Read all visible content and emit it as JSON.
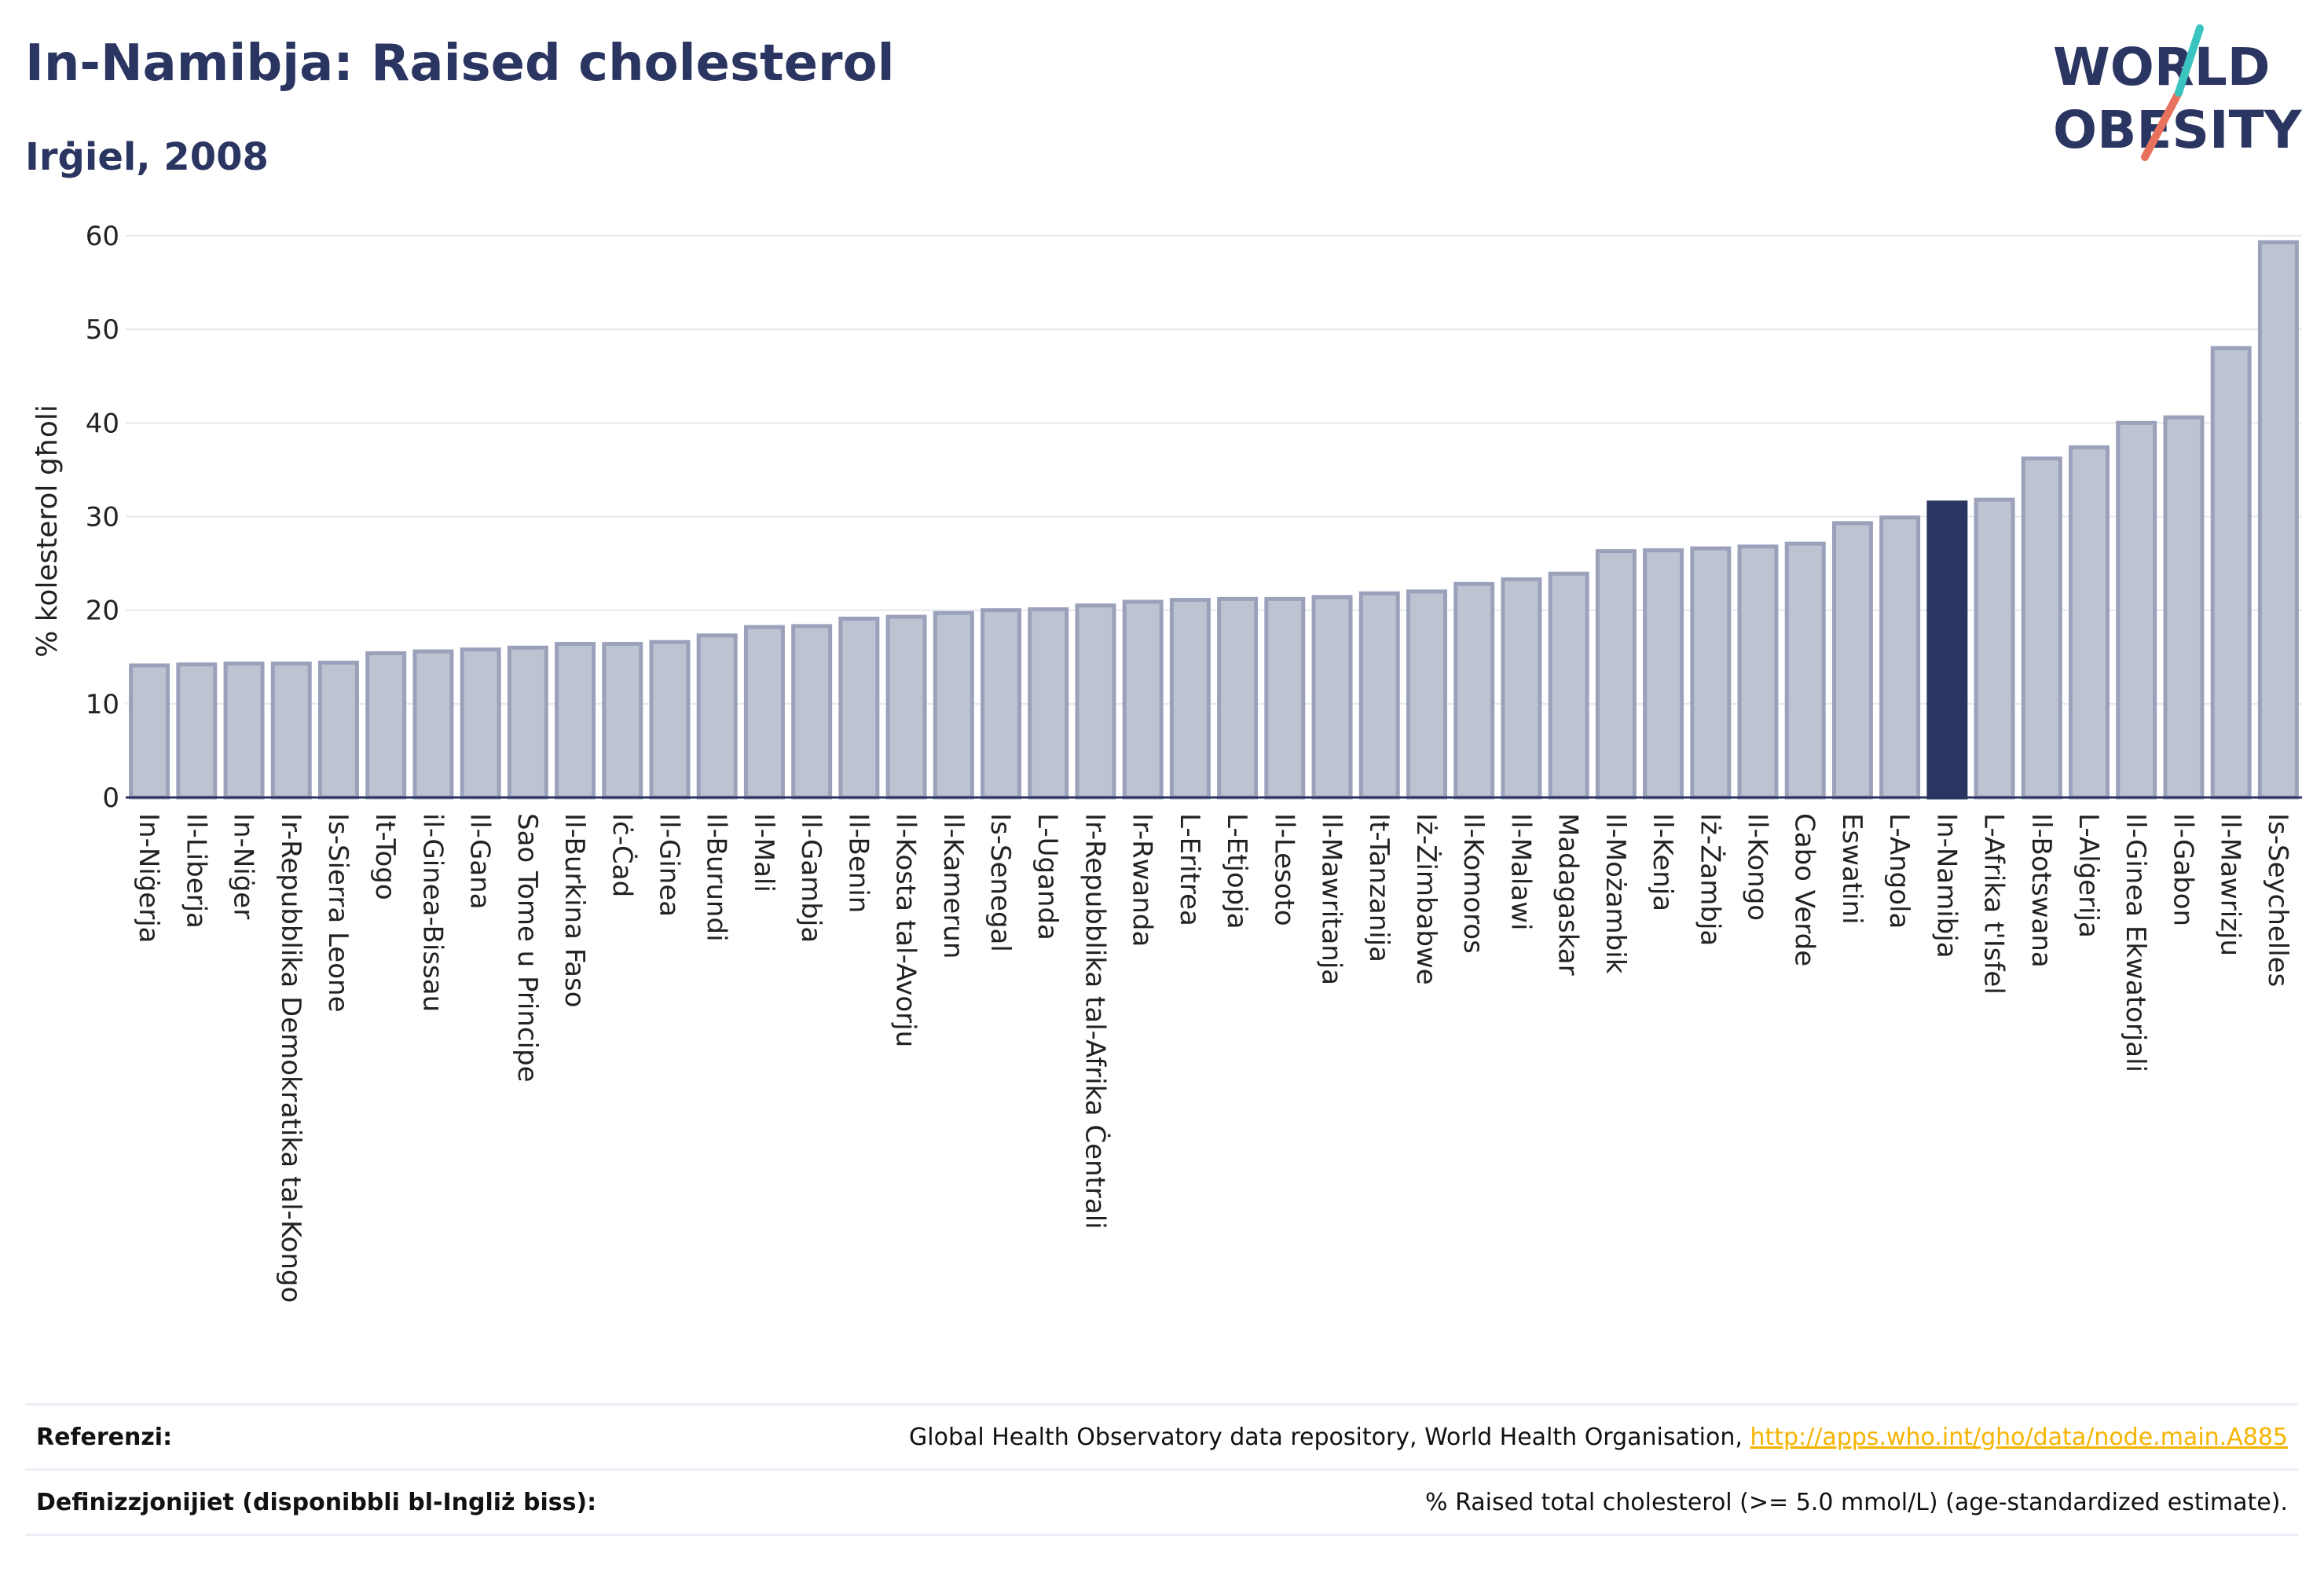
{
  "header": {
    "title": "In-Namibja: Raised cholesterol",
    "subtitle": "Irġiel, 2008"
  },
  "logo": {
    "line1": "WORLD",
    "line2": "OBESITY"
  },
  "chart_data": {
    "type": "bar",
    "ylabel": "% kolesterol għoli",
    "ylim": [
      0,
      60
    ],
    "yticks": [
      0,
      10,
      20,
      30,
      40,
      50,
      60
    ],
    "grid": true,
    "highlight": "In-Namibja",
    "colors": {
      "bar": "#bec3d1",
      "bar_edge": "#9ba1ba",
      "highlight": "#2b3561",
      "grid": "#e6e8ee",
      "axis": "#2b3561"
    },
    "categories": [
      "In-Niġerja",
      "Il-Liberja",
      "In-Niġer",
      "Ir-Repubblika Demokratika tal-Kongo",
      "Is-Sierra Leone",
      "It-Togo",
      "il-Ginea-Bissau",
      "Il-Gana",
      "Sao Tome u Principe",
      "Il-Burkina Faso",
      "Iċ-Ċad",
      "Il-Ginea",
      "Il-Burundi",
      "Il-Mali",
      "Il-Gambja",
      "Il-Benin",
      "Il-Kosta tal-Avorju",
      "Il-Kamerun",
      "Is-Senegal",
      "L-Uganda",
      "Ir-Repubblika tal-Afrika Ċentrali",
      "Ir-Rwanda",
      "L-Eritrea",
      "L-Etjopja",
      "Il-Lesoto",
      "Il-Mawritanja",
      "It-Tanzanija",
      "Iż-Żimbabwe",
      "Il-Komoros",
      "Il-Malawi",
      "Madagaskar",
      "Il-Możambik",
      "Il-Kenja",
      "Iż-Żambja",
      "Il-Kongo",
      "Cabo Verde",
      "Eswatini",
      "L-Angola",
      "In-Namibja",
      "L-Afrika t'Isfel",
      "Il-Botswana",
      "L-Alġerija",
      "Il-Ginea Ekwatorjali",
      "Il-Gabon",
      "Il-Mawrizju",
      "Is-Seychelles"
    ],
    "values": [
      14.1,
      14.2,
      14.3,
      14.3,
      14.4,
      15.4,
      15.6,
      15.8,
      16.0,
      16.4,
      16.4,
      16.6,
      17.3,
      18.2,
      18.3,
      19.1,
      19.3,
      19.7,
      20.0,
      20.1,
      20.5,
      20.9,
      21.1,
      21.2,
      21.2,
      21.4,
      21.8,
      22.0,
      22.8,
      23.3,
      23.9,
      26.3,
      26.4,
      26.6,
      26.8,
      27.1,
      29.3,
      29.9,
      31.5,
      31.8,
      36.2,
      37.4,
      40.0,
      40.6,
      48.0,
      59.3
    ]
  },
  "footer": {
    "references_label": "Referenzi:",
    "references_text": "Global Health Observatory data repository, World Health Organisation, ",
    "references_link": "http://apps.who.int/gho/data/node.main.A885",
    "definitions_label": "Definizzjonijiet (disponibbli bl-Ingliż biss):",
    "definitions_text": "% Raised total cholesterol (>= 5.0 mmol/L) (age-standardized estimate)."
  }
}
